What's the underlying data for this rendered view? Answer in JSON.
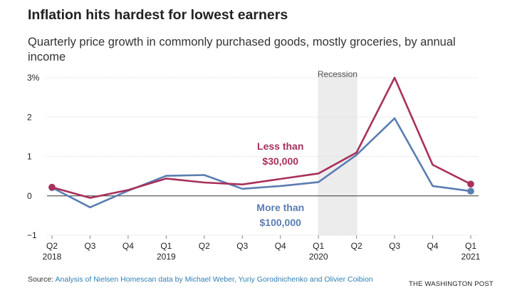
{
  "title": "Inflation hits hardest for lowest earners",
  "subtitle": "Quarterly price growth in commonly purchased goods, mostly groceries, by annual income",
  "source": {
    "prefix": "Source: ",
    "link_text": "Analysis of Nielsen Homescan data by Michael Weber, Yuriy Gorodnichenko and Olivier Coibion"
  },
  "credit": "THE WASHINGTON POST",
  "chart_data": {
    "type": "line",
    "categories": [
      "Q2 2018",
      "Q3 2018",
      "Q4 2018",
      "Q1 2019",
      "Q2 2019",
      "Q3 2019",
      "Q4 2019",
      "Q1 2020",
      "Q2 2020",
      "Q3 2020",
      "Q4 2020",
      "Q1 2021"
    ],
    "x_tick_quarters": [
      "Q2",
      "Q3",
      "Q4",
      "Q1",
      "Q2",
      "Q3",
      "Q4",
      "Q1",
      "Q2",
      "Q3",
      "Q4",
      "Q1"
    ],
    "x_tick_years": [
      "2018",
      "",
      "",
      "2019",
      "",
      "",
      "",
      "2020",
      "",
      "",
      "",
      "2021"
    ],
    "y_ticks": [
      "3%",
      "2",
      "1",
      "0",
      "−1"
    ],
    "y_tick_values": [
      3,
      2,
      1,
      0,
      -1
    ],
    "ylim": [
      -1,
      3
    ],
    "grid": true,
    "series": [
      {
        "name": "Less than $30,000",
        "label_lines": [
          "Less than",
          "$30,000"
        ],
        "color": "#a8305a",
        "values": [
          0.22,
          -0.05,
          0.15,
          0.44,
          0.34,
          0.29,
          0.43,
          0.57,
          1.1,
          3.0,
          0.79,
          0.3
        ]
      },
      {
        "name": "More than $100,000",
        "label_lines": [
          "More than",
          "$100,000"
        ],
        "color": "#5b7db1",
        "values": [
          0.21,
          -0.29,
          0.13,
          0.51,
          0.53,
          0.18,
          0.25,
          0.35,
          1.04,
          1.97,
          0.25,
          0.12
        ]
      }
    ],
    "annotations": [
      {
        "label": "Recession",
        "from_index": 7,
        "to_index": 8,
        "shade": "#ececec"
      }
    ]
  }
}
